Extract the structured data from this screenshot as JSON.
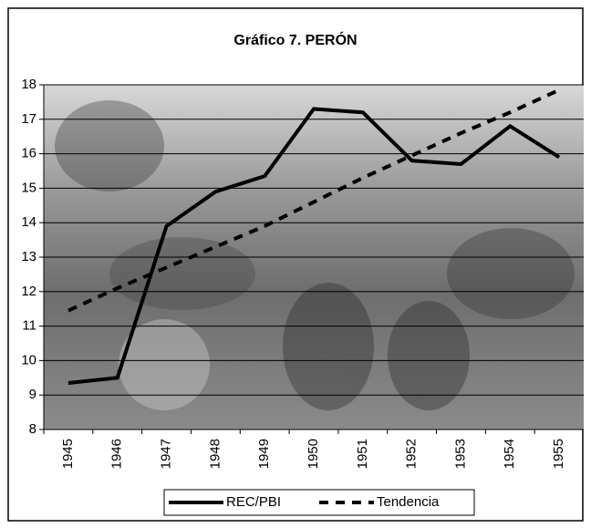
{
  "chart_data": {
    "type": "line",
    "title": "Gráfico 7. PERÓN",
    "categories": [
      "1945",
      "1946",
      "1947",
      "1948",
      "1949",
      "1950",
      "1951",
      "1952",
      "1953",
      "1954",
      "1955"
    ],
    "series": [
      {
        "name": "REC/PBI",
        "color": "#000000",
        "line_style": "solid",
        "values": [
          9.35,
          9.5,
          13.9,
          14.9,
          15.35,
          17.3,
          17.2,
          15.8,
          15.7,
          16.8,
          15.9
        ]
      },
      {
        "name": "Tendencia",
        "color": "#000000",
        "line_style": "dashed",
        "values": [
          11.45,
          12.1,
          12.7,
          13.3,
          13.9,
          14.6,
          15.3,
          15.95,
          16.6,
          17.2,
          17.85
        ]
      }
    ],
    "ylim": [
      8,
      18
    ],
    "yticks": [
      8,
      9,
      10,
      11,
      12,
      13,
      14,
      15,
      16,
      17,
      18
    ],
    "grid": true,
    "legend": "bottom"
  }
}
